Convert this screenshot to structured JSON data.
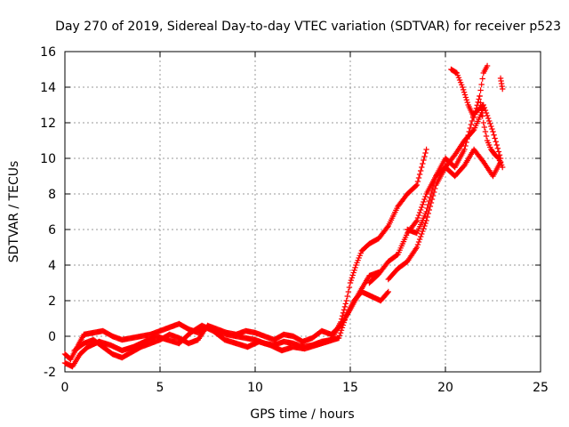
{
  "chart_data": {
    "type": "scatter",
    "title": "Day 270 of 2019, Sidereal Day-to-day VTEC variation (SDTVAR) for receiver p523",
    "xlabel": "GPS time / hours",
    "ylabel": "SDTVAR / TECUs",
    "xlim": [
      0,
      25
    ],
    "ylim": [
      -2,
      16
    ],
    "x_ticks": [
      0,
      5,
      10,
      15,
      20,
      25
    ],
    "y_ticks": [
      -2,
      0,
      2,
      4,
      6,
      8,
      10,
      12,
      14,
      16
    ],
    "x_tick_labels": [
      "0",
      "5",
      "10",
      "15",
      "20",
      "25"
    ],
    "y_tick_labels": [
      "-2",
      "0",
      "2",
      "4",
      "6",
      "8",
      "10",
      "12",
      "14",
      "16"
    ],
    "grid": true,
    "grid_style": "dotted",
    "marker": "+",
    "series_color": "#ff0000",
    "series": [
      {
        "x": [
          0.0,
          0.3,
          0.7,
          1.0,
          1.5,
          2.0,
          2.5,
          3.0,
          3.5,
          4.0,
          4.5,
          5.0,
          5.5,
          6.0,
          6.5,
          7.0,
          7.5,
          8.0,
          8.5,
          9.0,
          9.5,
          10.0,
          10.5,
          11.0,
          11.5,
          12.0,
          12.5,
          13.0,
          13.5,
          14.0,
          14.5,
          14.8,
          15.0,
          15.3,
          15.6,
          16.0,
          16.5,
          17.0,
          17.5,
          18.0,
          18.5,
          19.0
        ],
        "y": [
          -1.0,
          -1.3,
          -0.5,
          0.1,
          0.2,
          0.3,
          0.0,
          -0.2,
          -0.1,
          0.0,
          0.1,
          0.3,
          0.5,
          0.7,
          0.4,
          0.2,
          0.5,
          0.3,
          0.1,
          0.0,
          -0.1,
          -0.2,
          -0.4,
          -0.5,
          -0.3,
          -0.4,
          -0.6,
          -0.5,
          -0.3,
          -0.2,
          0.8,
          2.0,
          3.0,
          4.0,
          4.8,
          5.2,
          5.5,
          6.2,
          7.3,
          8.0,
          8.5,
          10.5
        ]
      },
      {
        "x": [
          0.0,
          0.4,
          0.8,
          1.2,
          1.8,
          2.4,
          3.0,
          3.6,
          4.2,
          4.8,
          5.4,
          6.0,
          6.6,
          7.2,
          7.8,
          8.4,
          9.0,
          9.6,
          10.2,
          10.8,
          11.4,
          12.0,
          12.6,
          13.2,
          13.8,
          14.4,
          14.8,
          15.2,
          15.6,
          16.0,
          16.6,
          17.0
        ],
        "y": [
          -1.5,
          -1.7,
          -1.0,
          -0.6,
          -0.3,
          -0.5,
          -0.8,
          -0.6,
          -0.3,
          0.0,
          -0.2,
          -0.4,
          0.2,
          0.6,
          0.3,
          -0.2,
          -0.4,
          -0.6,
          -0.3,
          -0.5,
          -0.8,
          -0.6,
          -0.7,
          -0.5,
          -0.3,
          -0.1,
          1.2,
          2.0,
          2.5,
          2.3,
          2.0,
          2.5
        ]
      },
      {
        "x": [
          0.5,
          1.0,
          1.5,
          2.0,
          2.5,
          3.0,
          3.5,
          4.0,
          4.5,
          5.0,
          5.5,
          6.0,
          6.5,
          7.0,
          7.5,
          8.0,
          8.5,
          9.0,
          9.5,
          10.0,
          10.5,
          11.0,
          11.5,
          12.0,
          12.5,
          13.0,
          13.5,
          14.0,
          14.5,
          15.0,
          15.5,
          16.0,
          16.5
        ],
        "y": [
          -0.8,
          -0.4,
          -0.2,
          -0.6,
          -1.0,
          -1.2,
          -0.9,
          -0.6,
          -0.4,
          -0.2,
          0.1,
          -0.1,
          -0.4,
          -0.2,
          0.6,
          0.4,
          0.2,
          0.1,
          0.3,
          0.2,
          0.0,
          -0.2,
          0.1,
          0.0,
          -0.3,
          -0.1,
          0.3,
          0.1,
          0.6,
          1.5,
          2.5,
          3.4,
          3.6
        ]
      },
      {
        "x": [
          16.0,
          16.5,
          17.0,
          17.5,
          18.0,
          18.5,
          19.0,
          19.5,
          20.0,
          20.5,
          21.0,
          21.5,
          22.0
        ],
        "y": [
          3.0,
          3.5,
          4.2,
          4.6,
          5.8,
          6.5,
          8.0,
          9.0,
          9.5,
          10.2,
          11.0,
          11.6,
          12.8
        ]
      },
      {
        "x": [
          17.0,
          17.5,
          18.0,
          18.5,
          19.0,
          19.5,
          20.0,
          20.5,
          21.0,
          21.5,
          22.0,
          22.5,
          22.9
        ],
        "y": [
          3.2,
          3.8,
          4.2,
          5.0,
          6.5,
          8.5,
          9.5,
          9.0,
          9.6,
          10.5,
          9.8,
          9.0,
          9.8
        ]
      },
      {
        "x": [
          18.0,
          18.5,
          19.0,
          19.5,
          20.0,
          20.5,
          21.0,
          21.5,
          22.0,
          22.5,
          22.9
        ],
        "y": [
          6.0,
          5.8,
          7.0,
          9.0,
          10.0,
          9.5,
          10.5,
          12.5,
          13.0,
          11.5,
          10.0
        ]
      },
      {
        "x": [
          20.3,
          20.6,
          20.9,
          21.2,
          21.5,
          21.8,
          22.0,
          22.2
        ],
        "y": [
          15.0,
          14.8,
          14.0,
          13.0,
          12.3,
          13.5,
          14.8,
          15.2
        ]
      },
      {
        "x": [
          21.8,
          22.0,
          22.2,
          22.4,
          22.6,
          22.8,
          23.0
        ],
        "y": [
          13.5,
          12.0,
          11.0,
          10.5,
          10.2,
          10.0,
          9.5
        ]
      },
      {
        "x": [
          22.9,
          22.95,
          23.0
        ],
        "y": [
          14.5,
          14.2,
          13.9
        ]
      }
    ]
  }
}
